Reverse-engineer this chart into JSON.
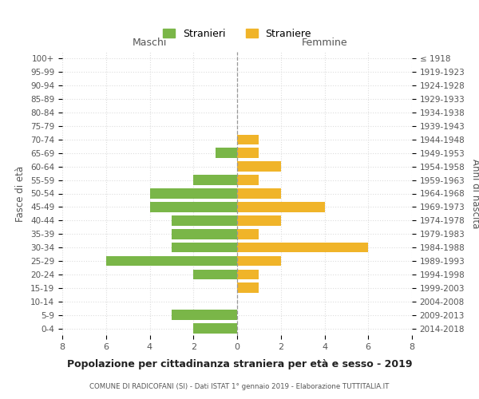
{
  "age_groups": [
    "100+",
    "95-99",
    "90-94",
    "85-89",
    "80-84",
    "75-79",
    "70-74",
    "65-69",
    "60-64",
    "55-59",
    "50-54",
    "45-49",
    "40-44",
    "35-39",
    "30-34",
    "25-29",
    "20-24",
    "15-19",
    "10-14",
    "5-9",
    "0-4"
  ],
  "birth_years": [
    "≤ 1918",
    "1919-1923",
    "1924-1928",
    "1929-1933",
    "1934-1938",
    "1939-1943",
    "1944-1948",
    "1949-1953",
    "1954-1958",
    "1959-1963",
    "1964-1968",
    "1969-1973",
    "1974-1978",
    "1979-1983",
    "1984-1988",
    "1989-1993",
    "1994-1998",
    "1999-2003",
    "2004-2008",
    "2009-2013",
    "2014-2018"
  ],
  "males": [
    0,
    0,
    0,
    0,
    0,
    0,
    0,
    1,
    0,
    2,
    4,
    4,
    3,
    3,
    3,
    6,
    2,
    0,
    0,
    3,
    2
  ],
  "females": [
    0,
    0,
    0,
    0,
    0,
    0,
    1,
    1,
    2,
    1,
    2,
    4,
    2,
    1,
    6,
    2,
    1,
    1,
    0,
    0,
    0
  ],
  "male_color": "#7ab648",
  "female_color": "#f0b429",
  "title": "Popolazione per cittadinanza straniera per età e sesso - 2019",
  "subtitle": "COMUNE DI RADICOFANI (SI) - Dati ISTAT 1° gennaio 2019 - Elaborazione TUTTITALIA.IT",
  "label_maschi": "Maschi",
  "label_femmine": "Femmine",
  "ylabel_left": "Fasce di età",
  "ylabel_right": "Anni di nascita",
  "legend_male": "Stranieri",
  "legend_female": "Straniere",
  "xlim": 8,
  "background_color": "#ffffff",
  "grid_color": "#dddddd",
  "bar_height": 0.75
}
